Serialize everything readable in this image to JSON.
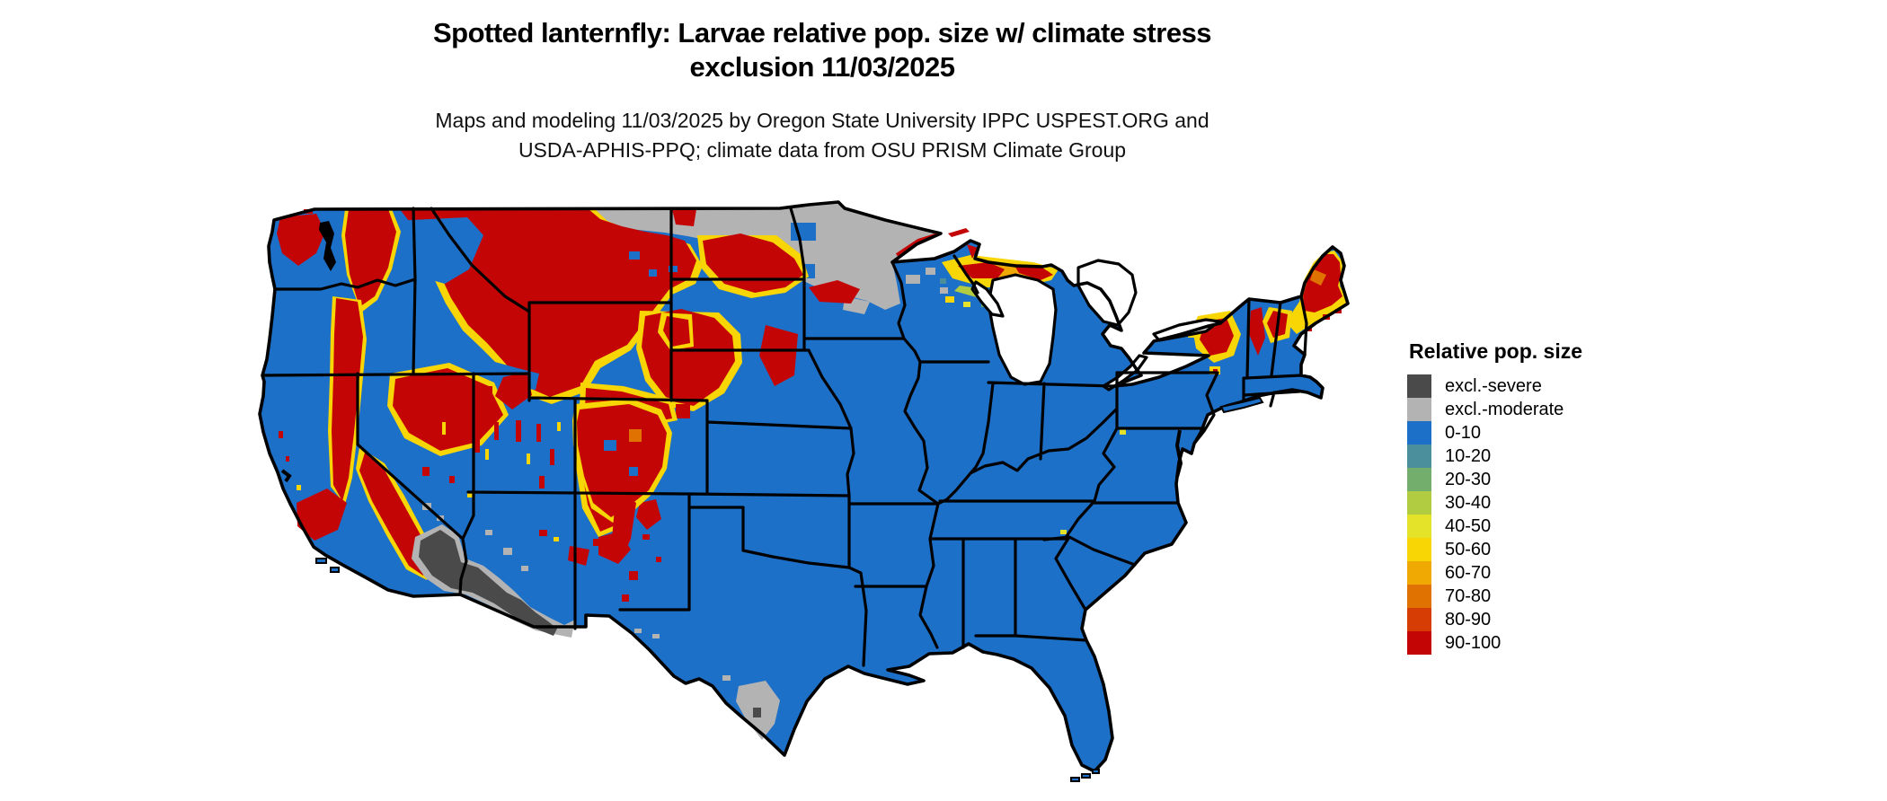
{
  "header": {
    "title_line1": "Spotted lanternfly: Larvae relative pop. size w/ climate stress",
    "title_line2": "exclusion 11/03/2025",
    "subtitle_line1": "Maps and modeling 11/03/2025 by Oregon State University IPPC USPEST.ORG and",
    "subtitle_line2": "USDA-APHIS-PPQ; climate data from OSU PRISM Climate Group"
  },
  "legend": {
    "title": "Relative pop. size",
    "items": [
      {
        "label": "excl.-severe",
        "color": "#4a4a4a"
      },
      {
        "label": "excl.-moderate",
        "color": "#b3b3b3"
      },
      {
        "label": "0-10",
        "color": "#1d70c8"
      },
      {
        "label": "10-20",
        "color": "#4a8f9b"
      },
      {
        "label": "20-30",
        "color": "#74ae6d"
      },
      {
        "label": "30-40",
        "color": "#b2cc42"
      },
      {
        "label": "40-50",
        "color": "#e4e32a"
      },
      {
        "label": "50-60",
        "color": "#f8d504"
      },
      {
        "label": "60-70",
        "color": "#f0a802"
      },
      {
        "label": "70-80",
        "color": "#e07201"
      },
      {
        "label": "80-90",
        "color": "#d63d04"
      },
      {
        "label": "90-100",
        "color": "#c40505"
      }
    ]
  },
  "map": {
    "palette": {
      "sev": "#4a4a4a",
      "mod": "#b3b3b3",
      "c0": "#1d70c8",
      "c10": "#4a8f9b",
      "c20": "#74ae6d",
      "c30": "#b2cc42",
      "c40": "#e4e32a",
      "c50": "#f8d504",
      "c60": "#f0a802",
      "c70": "#e07201",
      "c80": "#d63d04",
      "c90": "#c40505",
      "ink": "#000000",
      "water": "#ffffff"
    },
    "features": [
      {
        "name": "excluded-moderate-northern-plains",
        "class": "excl.-moderate"
      },
      {
        "name": "excluded-severe-southwest-desert",
        "class": "excl.-severe"
      },
      {
        "name": "excluded-moderate-south-texas",
        "class": "excl.-moderate"
      },
      {
        "name": "high-pop-cascades-washington-oregon",
        "class": "90-100"
      },
      {
        "name": "high-pop-sierra-nevada",
        "class": "90-100"
      },
      {
        "name": "high-pop-idaho-montana-rockies",
        "class": "90-100"
      },
      {
        "name": "high-pop-utah-colorado-rockies",
        "class": "90-100"
      },
      {
        "name": "high-pop-upper-michigan",
        "class": "60-100"
      },
      {
        "name": "high-pop-adirondacks",
        "class": "90-100"
      },
      {
        "name": "high-pop-northern-new-england-maine",
        "class": "90-100"
      },
      {
        "name": "base-low-population",
        "class": "0-10"
      }
    ]
  }
}
